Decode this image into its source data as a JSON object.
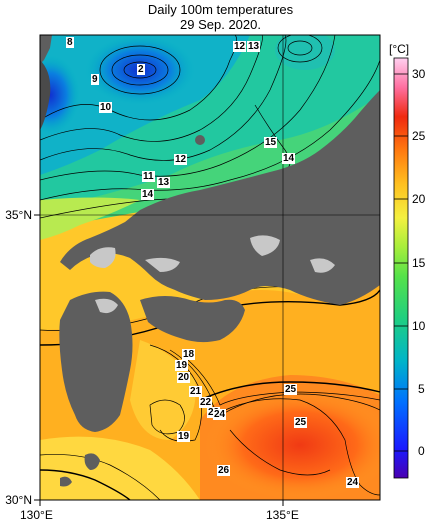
{
  "title": "Daily 100m temperatures",
  "subtitle": "29 Sep. 2020.",
  "axes": {
    "x_ticks": [
      "130°E",
      "135°E"
    ],
    "y_ticks": [
      "35°N",
      "30°N"
    ]
  },
  "colorbar": {
    "unit": "[°C]",
    "ticks": [
      "30",
      "25",
      "20",
      "15",
      "10",
      "5",
      "0"
    ],
    "range": [
      -2,
      32
    ]
  },
  "contour_labels": [
    "8",
    "2",
    "12",
    "13",
    "9",
    "10",
    "15",
    "14",
    "12",
    "11",
    "13",
    "14",
    "18",
    "19",
    "20",
    "21",
    "22",
    "23",
    "24",
    "25",
    "25",
    "19",
    "26",
    "24"
  ]
}
